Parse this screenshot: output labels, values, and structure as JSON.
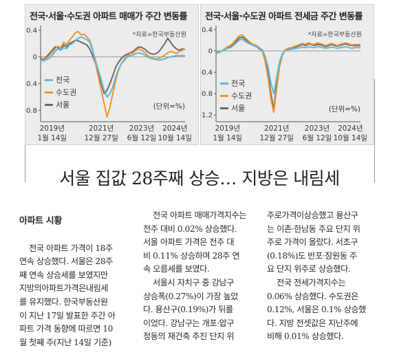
{
  "charts": [
    {
      "title": "전국·서울·수도권 아파트 매매가 주간 변동률",
      "source": "*자료=한국부동산원",
      "unit": "(단위=%)",
      "y_ticks": [
        "0.4",
        "0",
        "-0.4",
        "-0.8"
      ],
      "x_ticks": [
        [
          "2019년",
          "1월 14일"
        ],
        [
          "2021년",
          "12월 27일"
        ],
        [
          "2023년",
          "6월 12일"
        ],
        [
          "2024년",
          "10월 14일"
        ]
      ],
      "legend": [
        "전국",
        "수도권",
        "서울"
      ]
    },
    {
      "title": "전국·서울·수도권 아파트 전세금 주간 변동률",
      "source": "*자료=한국부동산원",
      "unit": "(단위=%)",
      "y_ticks": [
        "0.4",
        "0",
        "-0.4",
        "-0.8",
        "-1.2"
      ],
      "x_ticks": [
        [
          "2019년",
          "1월 14일"
        ],
        [
          "2021년",
          "12월 27일"
        ],
        [
          "2023년",
          "6월 12일"
        ],
        [
          "2024년",
          "10월 14일"
        ]
      ],
      "legend": [
        "전국",
        "수도권",
        "서울"
      ]
    }
  ],
  "colors": {
    "national": "#5bb8de",
    "metro": "#f0922b",
    "seoul": "#6a6a6a"
  },
  "chart_data": [
    {
      "type": "line",
      "ylim": [
        -0.95,
        0.45
      ],
      "x": [
        0,
        0.02,
        0.04,
        0.06,
        0.08,
        0.1,
        0.12,
        0.14,
        0.16,
        0.18,
        0.2,
        0.22,
        0.24,
        0.26,
        0.28,
        0.3,
        0.32,
        0.34,
        0.36,
        0.38,
        0.4,
        0.42,
        0.44,
        0.46,
        0.48,
        0.5,
        0.52,
        0.54,
        0.56,
        0.58,
        0.6,
        0.62,
        0.64,
        0.66,
        0.68,
        0.7,
        0.72,
        0.74,
        0.76,
        0.78,
        0.8,
        0.82,
        0.84,
        0.86,
        0.88,
        0.9,
        0.92,
        0.94,
        0.96,
        0.98,
        1.0
      ],
      "series": [
        {
          "name": "전국",
          "values": [
            -0.05,
            -0.06,
            -0.04,
            -0.02,
            0.02,
            0.08,
            0.12,
            0.1,
            0.14,
            0.12,
            0.18,
            0.2,
            0.24,
            0.28,
            0.3,
            0.28,
            0.26,
            0.22,
            0.1,
            -0.05,
            -0.2,
            -0.35,
            -0.5,
            -0.6,
            -0.55,
            -0.45,
            -0.3,
            -0.18,
            -0.1,
            -0.05,
            0.0,
            0.02,
            0.03,
            0.05,
            0.06,
            0.05,
            0.03,
            0.0,
            -0.02,
            -0.03,
            -0.04,
            -0.05,
            -0.04,
            -0.03,
            -0.01,
            0.0,
            0.01,
            0.02,
            0.02,
            0.02,
            0.02
          ]
        },
        {
          "name": "수도권",
          "values": [
            -0.04,
            -0.05,
            -0.02,
            0.02,
            0.06,
            0.12,
            0.16,
            0.14,
            0.22,
            0.18,
            0.25,
            0.3,
            0.36,
            0.38,
            0.33,
            0.34,
            0.3,
            0.25,
            0.12,
            -0.1,
            -0.3,
            -0.5,
            -0.7,
            -0.9,
            -0.75,
            -0.55,
            -0.35,
            -0.2,
            -0.1,
            -0.03,
            0.02,
            0.05,
            0.06,
            0.1,
            0.12,
            0.1,
            0.07,
            0.02,
            0.0,
            -0.02,
            -0.03,
            -0.02,
            0.0,
            0.03,
            0.06,
            0.08,
            0.07,
            0.05,
            0.08,
            0.1,
            0.12
          ]
        },
        {
          "name": "서울",
          "values": [
            -0.02,
            -0.04,
            0.0,
            0.05,
            0.1,
            0.15,
            0.14,
            0.1,
            0.18,
            0.15,
            0.2,
            0.22,
            0.25,
            0.24,
            0.22,
            0.2,
            0.18,
            0.12,
            0.02,
            -0.1,
            -0.25,
            -0.4,
            -0.55,
            -0.5,
            -0.4,
            -0.28,
            -0.15,
            -0.08,
            -0.02,
            0.02,
            0.04,
            0.06,
            0.08,
            0.12,
            0.15,
            0.14,
            0.12,
            0.08,
            0.05,
            0.04,
            0.05,
            0.08,
            0.14,
            0.2,
            0.28,
            0.22,
            0.16,
            0.12,
            0.1,
            0.12,
            0.11
          ]
        }
      ]
    },
    {
      "type": "line",
      "ylim": [
        -1.3,
        0.45
      ],
      "x": [
        0,
        0.02,
        0.04,
        0.06,
        0.08,
        0.1,
        0.12,
        0.14,
        0.16,
        0.18,
        0.2,
        0.22,
        0.24,
        0.26,
        0.28,
        0.3,
        0.32,
        0.34,
        0.36,
        0.38,
        0.4,
        0.42,
        0.44,
        0.46,
        0.48,
        0.5,
        0.52,
        0.54,
        0.56,
        0.58,
        0.6,
        0.62,
        0.64,
        0.66,
        0.68,
        0.7,
        0.72,
        0.74,
        0.76,
        0.78,
        0.8,
        0.82,
        0.84,
        0.86,
        0.88,
        0.9,
        0.92,
        0.94,
        0.96,
        0.98,
        1.0
      ],
      "series": [
        {
          "name": "전국",
          "values": [
            -0.02,
            -0.02,
            0.0,
            0.02,
            0.05,
            0.06,
            0.1,
            0.15,
            0.2,
            0.22,
            0.18,
            0.15,
            0.12,
            0.1,
            0.08,
            0.05,
            0.02,
            -0.1,
            -0.3,
            -0.6,
            -0.8,
            -0.5,
            -0.2,
            -0.05,
            0.0,
            0.02,
            0.03,
            0.04,
            0.05,
            0.06,
            0.07,
            0.06,
            0.08,
            0.07,
            0.06,
            0.08,
            0.07,
            0.06,
            0.05,
            0.06,
            0.07,
            0.06,
            0.05,
            0.06,
            0.07,
            0.08,
            0.06,
            0.05,
            0.06,
            0.06,
            0.06
          ]
        },
        {
          "name": "수도권",
          "values": [
            -0.03,
            -0.03,
            0.0,
            0.04,
            0.08,
            0.1,
            0.15,
            0.22,
            0.28,
            0.3,
            0.25,
            0.2,
            0.15,
            0.12,
            0.1,
            0.06,
            0.0,
            -0.2,
            -0.5,
            -0.9,
            -1.15,
            -0.7,
            -0.3,
            -0.08,
            0.02,
            0.05,
            0.06,
            0.08,
            0.1,
            0.12,
            0.14,
            0.12,
            0.15,
            0.13,
            0.12,
            0.15,
            0.14,
            0.12,
            0.1,
            0.12,
            0.14,
            0.12,
            0.1,
            0.12,
            0.14,
            0.15,
            0.13,
            0.11,
            0.12,
            0.12,
            0.12
          ]
        },
        {
          "name": "서울",
          "values": [
            -0.04,
            -0.03,
            0.0,
            0.03,
            0.06,
            0.08,
            0.12,
            0.18,
            0.24,
            0.26,
            0.22,
            0.18,
            0.14,
            0.1,
            0.08,
            0.04,
            0.0,
            -0.15,
            -0.4,
            -0.8,
            -1.1,
            -0.6,
            -0.25,
            -0.06,
            0.01,
            0.04,
            0.05,
            0.06,
            0.08,
            0.1,
            0.12,
            0.1,
            0.13,
            0.12,
            0.1,
            0.12,
            0.11,
            0.1,
            0.08,
            0.1,
            0.12,
            0.1,
            0.09,
            0.1,
            0.12,
            0.13,
            0.11,
            0.1,
            0.1,
            0.1,
            0.1
          ]
        }
      ]
    }
  ],
  "article": {
    "headline": "서울 집값 28주째 상승… 지방은 내림세",
    "section": "아파트 시황",
    "col1_p1_lines": [
      "전국 아파트 가격이 18주",
      "연속 상승했다. 서울은 28주",
      "째 연속 상승세를 보였지만",
      "지방의아파트가격은내림세",
      "를 유지했다. 한국부동산원",
      "이 지난 17일 발표한 주간 아",
      "파트 가격 동향에 따르면 10",
      "월 첫째 주(지난 14일 기준)"
    ],
    "col2_p1_lines": [
      "전국 아파트 매매가격지수는",
      "전주 대비 0.02% 상승했다.",
      "서울 아파트 가격은 전주 대",
      "비 0.11% 상승하며 28주 연",
      "속 오름세를 보였다."
    ],
    "col2_p2_lines": [
      "서울시 자치구 중 강남구",
      "상승폭(0.27%)이 가장 높았",
      "다. 용산구(0.19%)가 뒤를",
      "이었다. 강남구는 개포·압구",
      "정동의 재건축 추진 단지 위"
    ],
    "col3_p1_lines": [
      "주로가격이상승했고 용산구",
      "는 이촌·한남동 주요 단지 위",
      "주로 가격이 올랐다. 서초구",
      "(0.18%)도 반포·잠원동 주",
      "요 단지 위주로 상승했다."
    ],
    "col3_p2_lines": [
      "전국 전세가격지수는",
      "0.06% 상승했다. 수도권은",
      "0.12%, 서울은 0.1% 상승했",
      "다. 지방 전셋값은 지난주에",
      "비해 0.01% 상승했다."
    ]
  }
}
